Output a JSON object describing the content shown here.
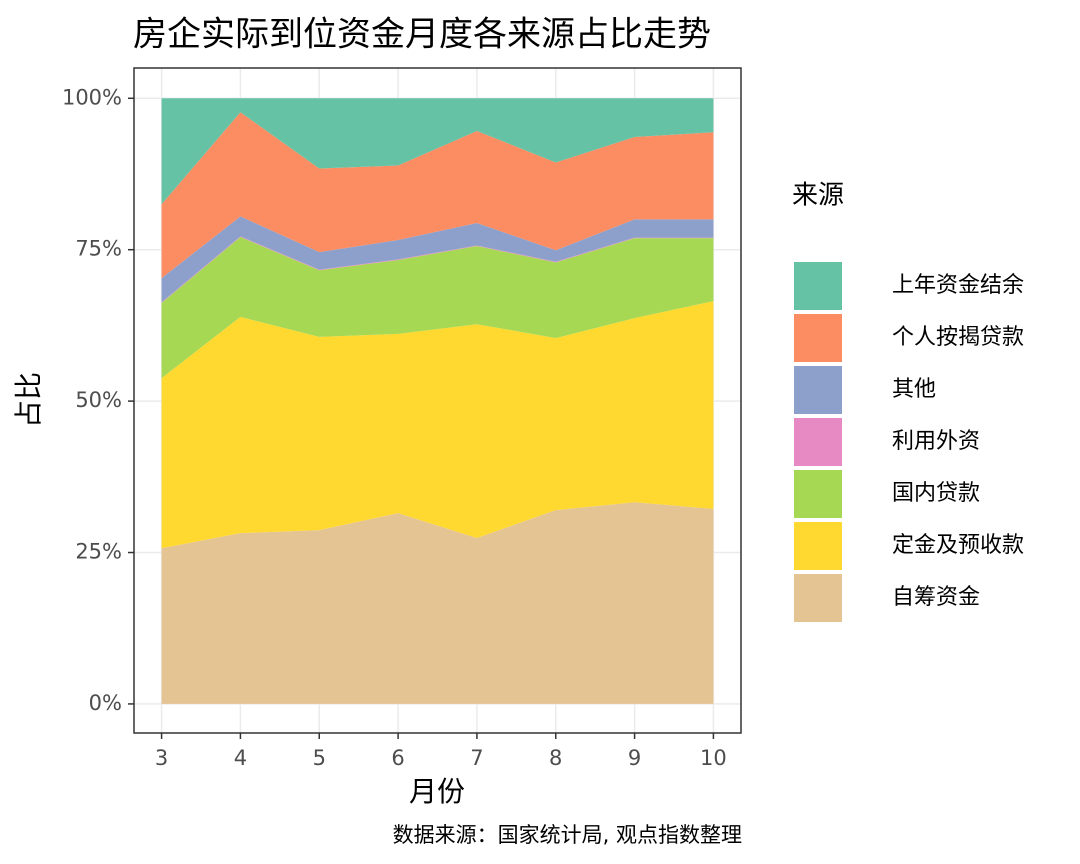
{
  "chart_data": {
    "type": "stacked_area",
    "title": "房企实际到位资金月度各来源占比走势",
    "x_label": "月份",
    "y_label": "占比",
    "legend_title": "来源",
    "caption": "数据来源：国家统计局, 观点指数整理",
    "x": [
      3,
      4,
      5,
      6,
      7,
      8,
      9,
      10
    ],
    "xlim": [
      2.65,
      10.35
    ],
    "xticks": [
      3,
      4,
      5,
      6,
      7,
      8,
      9,
      10
    ],
    "ylim": [
      -4.8,
      105
    ],
    "yticks": [
      {
        "value": 0,
        "label": "0%"
      },
      {
        "value": 25,
        "label": "25%"
      },
      {
        "value": 50,
        "label": "50%"
      },
      {
        "value": 75,
        "label": "75%"
      },
      {
        "value": 100,
        "label": "100%"
      }
    ],
    "grid": true,
    "series": [
      {
        "name": "上年资金结余",
        "color": "#66c2a5",
        "values": [
          17.5,
          2.3,
          11.6,
          11.1,
          5.4,
          10.6,
          6.4,
          5.6
        ]
      },
      {
        "name": "个人按揭贷款",
        "color": "#fc8d62",
        "values": [
          12.2,
          17.2,
          13.8,
          12.3,
          15.2,
          14.5,
          13.6,
          14.4
        ]
      },
      {
        "name": "其他",
        "color": "#8da0cb",
        "values": [
          4.0,
          3.3,
          2.9,
          3.2,
          3.7,
          1.9,
          3.0,
          3.0
        ]
      },
      {
        "name": "利用外资",
        "color": "#e78ac3",
        "values": [
          0.1,
          0.1,
          0.1,
          0.1,
          0.1,
          0.1,
          0.1,
          0.1
        ]
      },
      {
        "name": "国内贷款",
        "color": "#a6d854",
        "values": [
          12.4,
          13.2,
          11.0,
          12.2,
          12.9,
          12.5,
          13.2,
          10.4
        ]
      },
      {
        "name": "定金及预收款",
        "color": "#ffd92f",
        "values": [
          28.1,
          35.7,
          31.9,
          29.6,
          35.3,
          28.4,
          30.4,
          34.3
        ]
      },
      {
        "name": "自筹资金",
        "color": "#e5c494",
        "values": [
          25.7,
          28.2,
          28.7,
          31.5,
          27.4,
          32.0,
          33.3,
          32.2
        ]
      }
    ]
  }
}
